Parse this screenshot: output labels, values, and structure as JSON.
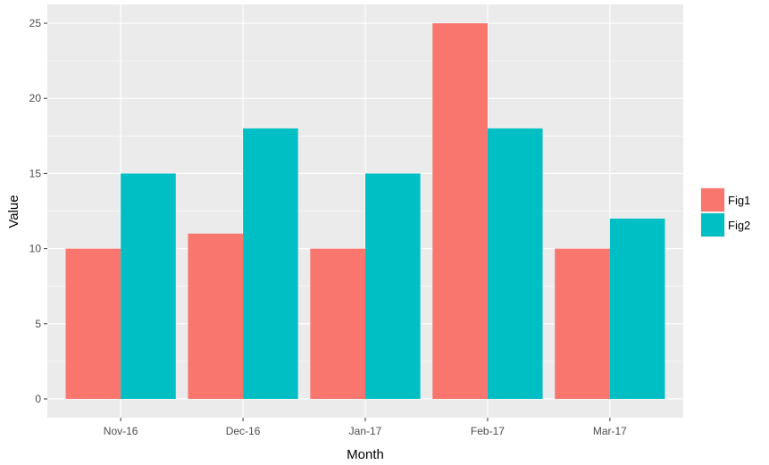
{
  "chart_data": {
    "type": "bar",
    "categories": [
      "Nov-16",
      "Dec-16",
      "Jan-17",
      "Feb-17",
      "Mar-17"
    ],
    "series": [
      {
        "name": "Fig1",
        "values": [
          10,
          11,
          10,
          25,
          10
        ],
        "color": "#F8766D"
      },
      {
        "name": "Fig2",
        "values": [
          15,
          18,
          15,
          18,
          12
        ],
        "color": "#00BFC4"
      }
    ],
    "title": "",
    "xlabel": "Month",
    "ylabel": "Value",
    "ylim": [
      -1.25,
      26.25
    ],
    "yticks": [
      0,
      5,
      10,
      15,
      20,
      25
    ],
    "ytick_labels": [
      "0",
      "5",
      "10",
      "15",
      "20",
      "25"
    ],
    "grid": true,
    "legend_position": "right",
    "panel_color": "#EBEBEB",
    "grid_color": "#FFFFFF"
  }
}
